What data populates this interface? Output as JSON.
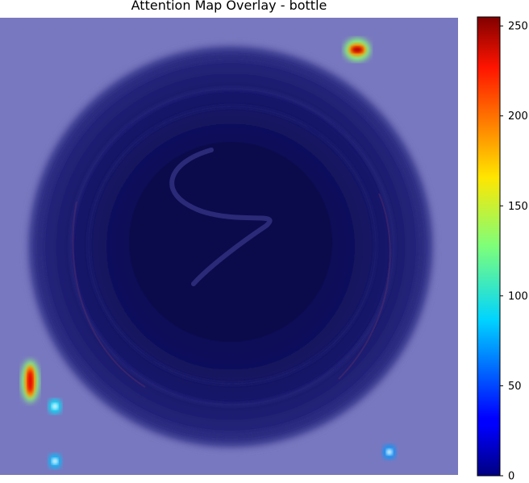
{
  "chart_data": {
    "type": "heatmap",
    "title": "Attention Map Overlay - bottle",
    "xlabel": "",
    "ylabel": "",
    "colormap": "jet",
    "overlay_tint": "#7878c0",
    "colorbar": {
      "range": [
        0,
        255
      ],
      "ticks": [
        0,
        50,
        100,
        150,
        200,
        250
      ],
      "tick_labels": [
        "0",
        "50",
        "100",
        "150",
        "200",
        "250"
      ]
    },
    "hotspots": [
      {
        "name": "top-right-spot",
        "cx": 0.78,
        "cy": 0.07,
        "value": 240
      },
      {
        "name": "left-spot",
        "cx": 0.066,
        "cy": 0.795,
        "value": 230
      },
      {
        "name": "left-small-spot",
        "cx": 0.12,
        "cy": 0.85,
        "value": 90
      },
      {
        "name": "bottom-left-spot",
        "cx": 0.12,
        "cy": 0.97,
        "value": 80
      },
      {
        "name": "bottom-right-spot",
        "cx": 0.85,
        "cy": 0.95,
        "value": 70
      }
    ]
  }
}
